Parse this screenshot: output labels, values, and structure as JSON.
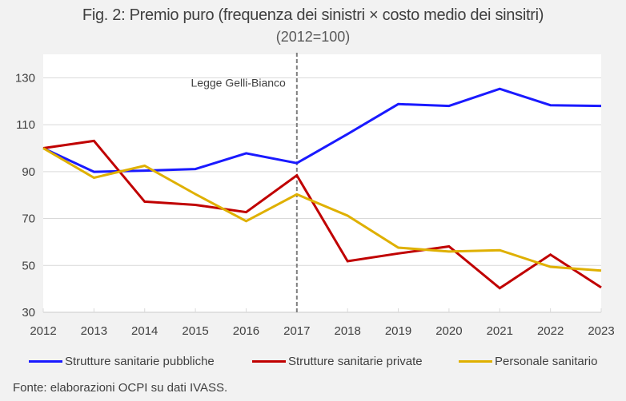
{
  "chart_data": {
    "type": "line",
    "title": "Fig. 2: Premio puro (frequenza dei sinistri × costo medio dei sinsitri)",
    "subtitle": "(2012=100)",
    "xlabel": "",
    "ylabel": "",
    "x": [
      "2012",
      "2013",
      "2014",
      "2015",
      "2016",
      "2017",
      "2018",
      "2019",
      "2020",
      "2021",
      "2022",
      "2023"
    ],
    "ylim": [
      30,
      140
    ],
    "yticks": [
      30,
      50,
      70,
      90,
      110,
      130
    ],
    "grid": true,
    "legend_position": "bottom",
    "series": [
      {
        "name": "Strutture sanitarie pubbliche",
        "color": "#1a1aff",
        "values": [
          100,
          89.9,
          90.4,
          91.1,
          97.8,
          93.6,
          106.0,
          118.8,
          118.0,
          125.3,
          118.3,
          118.0
        ]
      },
      {
        "name": "Strutture sanitarie private",
        "color": "#c00000",
        "values": [
          100,
          103.1,
          77.2,
          75.8,
          72.7,
          88.4,
          51.8,
          55.1,
          58.1,
          40.3,
          54.6,
          40.6
        ]
      },
      {
        "name": "Personale sanitario",
        "color": "#dfb000",
        "values": [
          100,
          87.4,
          92.5,
          80.4,
          68.9,
          80.3,
          71.2,
          57.6,
          55.9,
          56.5,
          49.4,
          47.8
        ]
      }
    ],
    "annotations": [
      {
        "type": "vline",
        "x": "2017",
        "label": "Legge Gelli-Bianco",
        "style": "dashed",
        "color": "#7f7f7f"
      }
    ]
  },
  "source": "Fonte: elaborazioni OCPI su dati IVASS."
}
